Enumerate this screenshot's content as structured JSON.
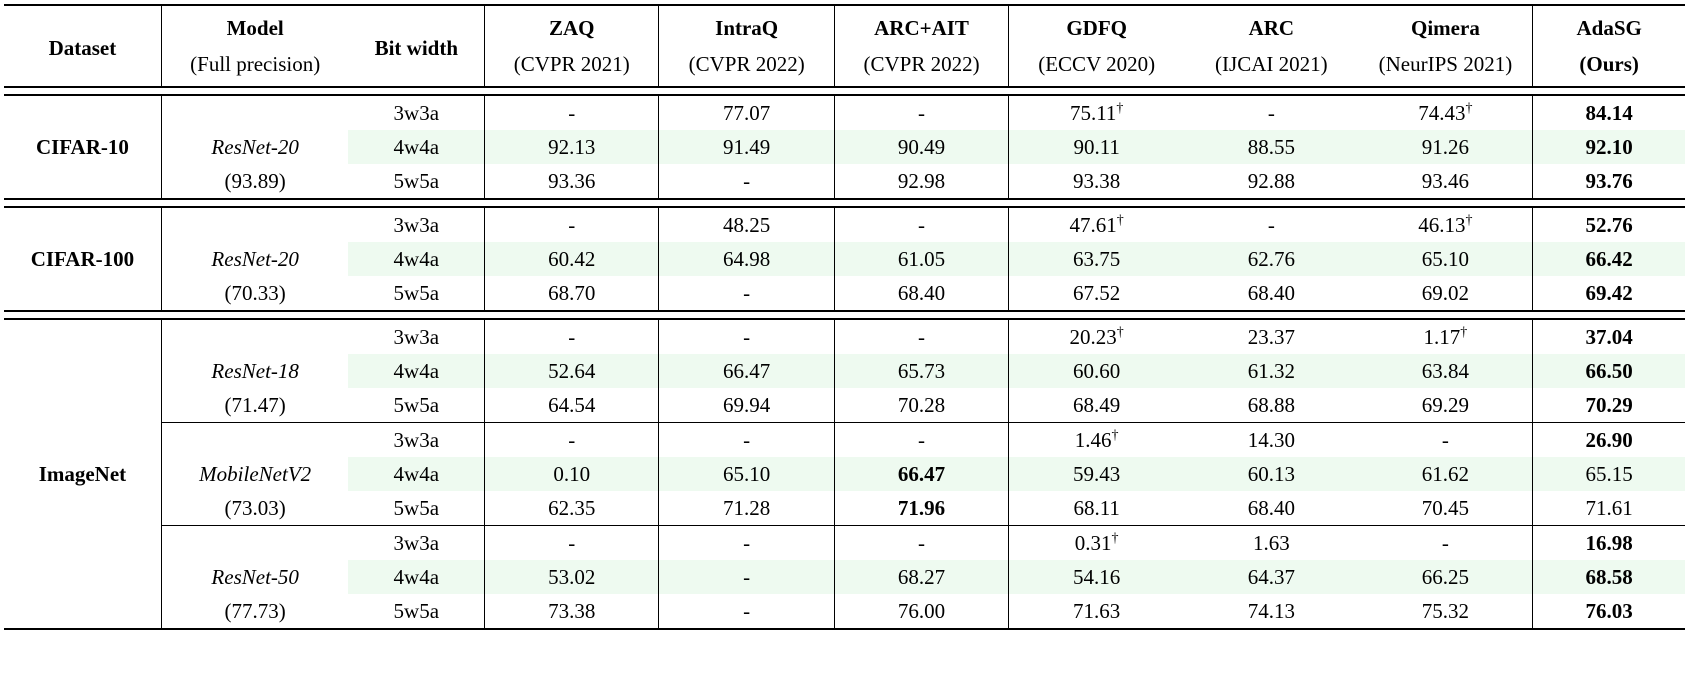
{
  "headers": [
    {
      "title": "Dataset",
      "subtitle": ""
    },
    {
      "title": "Model",
      "subtitle": "(Full precision)"
    },
    {
      "title": "Bit width",
      "subtitle": ""
    },
    {
      "title": "ZAQ",
      "subtitle": "(CVPR 2021)"
    },
    {
      "title": "IntraQ",
      "subtitle": "(CVPR 2022)"
    },
    {
      "title": "ARC+AIT",
      "subtitle": "(CVPR 2022)"
    },
    {
      "title": "GDFQ",
      "subtitle": "(ECCV 2020)"
    },
    {
      "title": "ARC",
      "subtitle": "(IJCAI 2021)"
    },
    {
      "title": "Qimera",
      "subtitle": "(NeurIPS 2021)"
    },
    {
      "title": "AdaSG",
      "subtitle": "(Ours)"
    }
  ],
  "dagger": "†",
  "groups": [
    {
      "dataset": "CIFAR-10",
      "models": [
        {
          "name": "ResNet-20",
          "fp": "(93.89)",
          "rows": [
            {
              "bw": "3w3a",
              "zaq": "-",
              "intraq": "77.07",
              "arcait": "-",
              "gdfq": "75.11",
              "arc": "-",
              "qimera": "74.43",
              "adasg": "84.14"
            },
            {
              "bw": "4w4a",
              "zaq": "92.13",
              "intraq": "91.49",
              "arcait": "90.49",
              "gdfq": "90.11",
              "arc": "88.55",
              "qimera": "91.26",
              "adasg": "92.10"
            },
            {
              "bw": "5w5a",
              "zaq": "93.36",
              "intraq": "-",
              "arcait": "92.98",
              "gdfq": "93.38",
              "arc": "92.88",
              "qimera": "93.46",
              "adasg": "93.76"
            }
          ]
        }
      ]
    },
    {
      "dataset": "CIFAR-100",
      "models": [
        {
          "name": "ResNet-20",
          "fp": "(70.33)",
          "rows": [
            {
              "bw": "3w3a",
              "zaq": "-",
              "intraq": "48.25",
              "arcait": "-",
              "gdfq": "47.61",
              "arc": "-",
              "qimera": "46.13",
              "adasg": "52.76"
            },
            {
              "bw": "4w4a",
              "zaq": "60.42",
              "intraq": "64.98",
              "arcait": "61.05",
              "gdfq": "63.75",
              "arc": "62.76",
              "qimera": "65.10",
              "adasg": "66.42"
            },
            {
              "bw": "5w5a",
              "zaq": "68.70",
              "intraq": "-",
              "arcait": "68.40",
              "gdfq": "67.52",
              "arc": "68.40",
              "qimera": "69.02",
              "adasg": "69.42"
            }
          ]
        }
      ]
    },
    {
      "dataset": "ImageNet",
      "models": [
        {
          "name": "ResNet-18",
          "fp": "(71.47)",
          "rows": [
            {
              "bw": "3w3a",
              "zaq": "-",
              "intraq": "-",
              "arcait": "-",
              "gdfq": "20.23",
              "arc": "23.37",
              "qimera": "1.17",
              "adasg": "37.04"
            },
            {
              "bw": "4w4a",
              "zaq": "52.64",
              "intraq": "66.47",
              "arcait": "65.73",
              "gdfq": "60.60",
              "arc": "61.32",
              "qimera": "63.84",
              "adasg": "66.50"
            },
            {
              "bw": "5w5a",
              "zaq": "64.54",
              "intraq": "69.94",
              "arcait": "70.28",
              "gdfq": "68.49",
              "arc": "68.88",
              "qimera": "69.29",
              "adasg": "70.29"
            }
          ]
        },
        {
          "name": "MobileNetV2",
          "fp": "(73.03)",
          "rows": [
            {
              "bw": "3w3a",
              "zaq": "-",
              "intraq": "-",
              "arcait": "-",
              "gdfq": "1.46",
              "arc": "14.30",
              "qimera": "-",
              "adasg": "26.90"
            },
            {
              "bw": "4w4a",
              "zaq": "0.10",
              "intraq": "65.10",
              "arcait": "66.47",
              "gdfq": "59.43",
              "arc": "60.13",
              "qimera": "61.62",
              "adasg": "65.15"
            },
            {
              "bw": "5w5a",
              "zaq": "62.35",
              "intraq": "71.28",
              "arcait": "71.96",
              "gdfq": "68.11",
              "arc": "68.40",
              "qimera": "70.45",
              "adasg": "71.61"
            }
          ]
        },
        {
          "name": "ResNet-50",
          "fp": "(77.73)",
          "rows": [
            {
              "bw": "3w3a",
              "zaq": "-",
              "intraq": "-",
              "arcait": "-",
              "gdfq": "0.31",
              "arc": "1.63",
              "qimera": "-",
              "adasg": "16.98"
            },
            {
              "bw": "4w4a",
              "zaq": "53.02",
              "intraq": "-",
              "arcait": "68.27",
              "gdfq": "54.16",
              "arc": "64.37",
              "qimera": "66.25",
              "adasg": "68.58"
            },
            {
              "bw": "5w5a",
              "zaq": "73.38",
              "intraq": "-",
              "arcait": "76.00",
              "gdfq": "71.63",
              "arc": "74.13",
              "qimera": "75.32",
              "adasg": "76.03"
            }
          ]
        }
      ]
    }
  ]
}
